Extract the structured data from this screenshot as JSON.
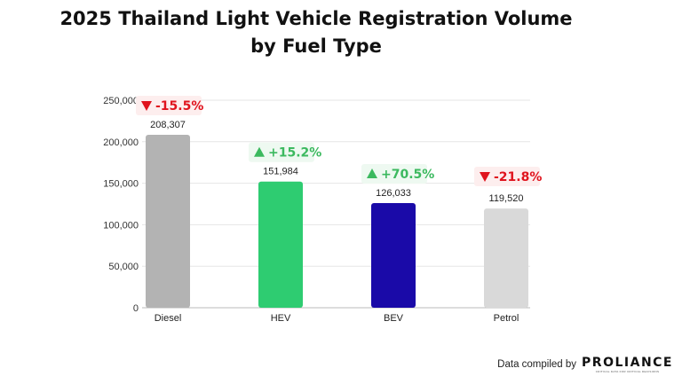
{
  "chart_data": {
    "type": "bar",
    "title": "2025 Thailand Light Vehicle Registration Volume by Fuel Type",
    "title_lines": [
      "2025 Thailand Light Vehicle Registration Volume",
      "by Fuel Type"
    ],
    "categories": [
      "Diesel",
      "HEV",
      "BEV",
      "Petrol"
    ],
    "values": [
      208307,
      151984,
      126033,
      119520
    ],
    "value_labels": [
      "208,307",
      "151,984",
      "126,033",
      "119,520"
    ],
    "changes": [
      "-15.5%",
      "+15.2%",
      "+70.5%",
      "-21.8%"
    ],
    "change_direction": [
      "down",
      "up",
      "up",
      "down"
    ],
    "bar_colors": [
      "#b3b3b3",
      "#2ecc71",
      "#1a0aa8",
      "#d9d9d9"
    ],
    "change_colors": {
      "up": "#3cb95f",
      "down": "#e0141e"
    },
    "badge_backgrounds": {
      "up": "#eef9f1",
      "down": "#fdeeee"
    },
    "ylim": [
      0,
      250000
    ],
    "yticks": [
      0,
      50000,
      100000,
      150000,
      200000,
      250000
    ],
    "ytick_labels": [
      "0",
      "50,000",
      "100,000",
      "150,000",
      "200,000",
      "250,000"
    ],
    "grid": true,
    "xlabel": "",
    "ylabel": ""
  },
  "footer": {
    "credit_text": "Data compiled by",
    "logo_text": "PROLIANCE",
    "logo_tagline": "CRITICAL DATA FOR CRITICAL DECISIONS"
  }
}
